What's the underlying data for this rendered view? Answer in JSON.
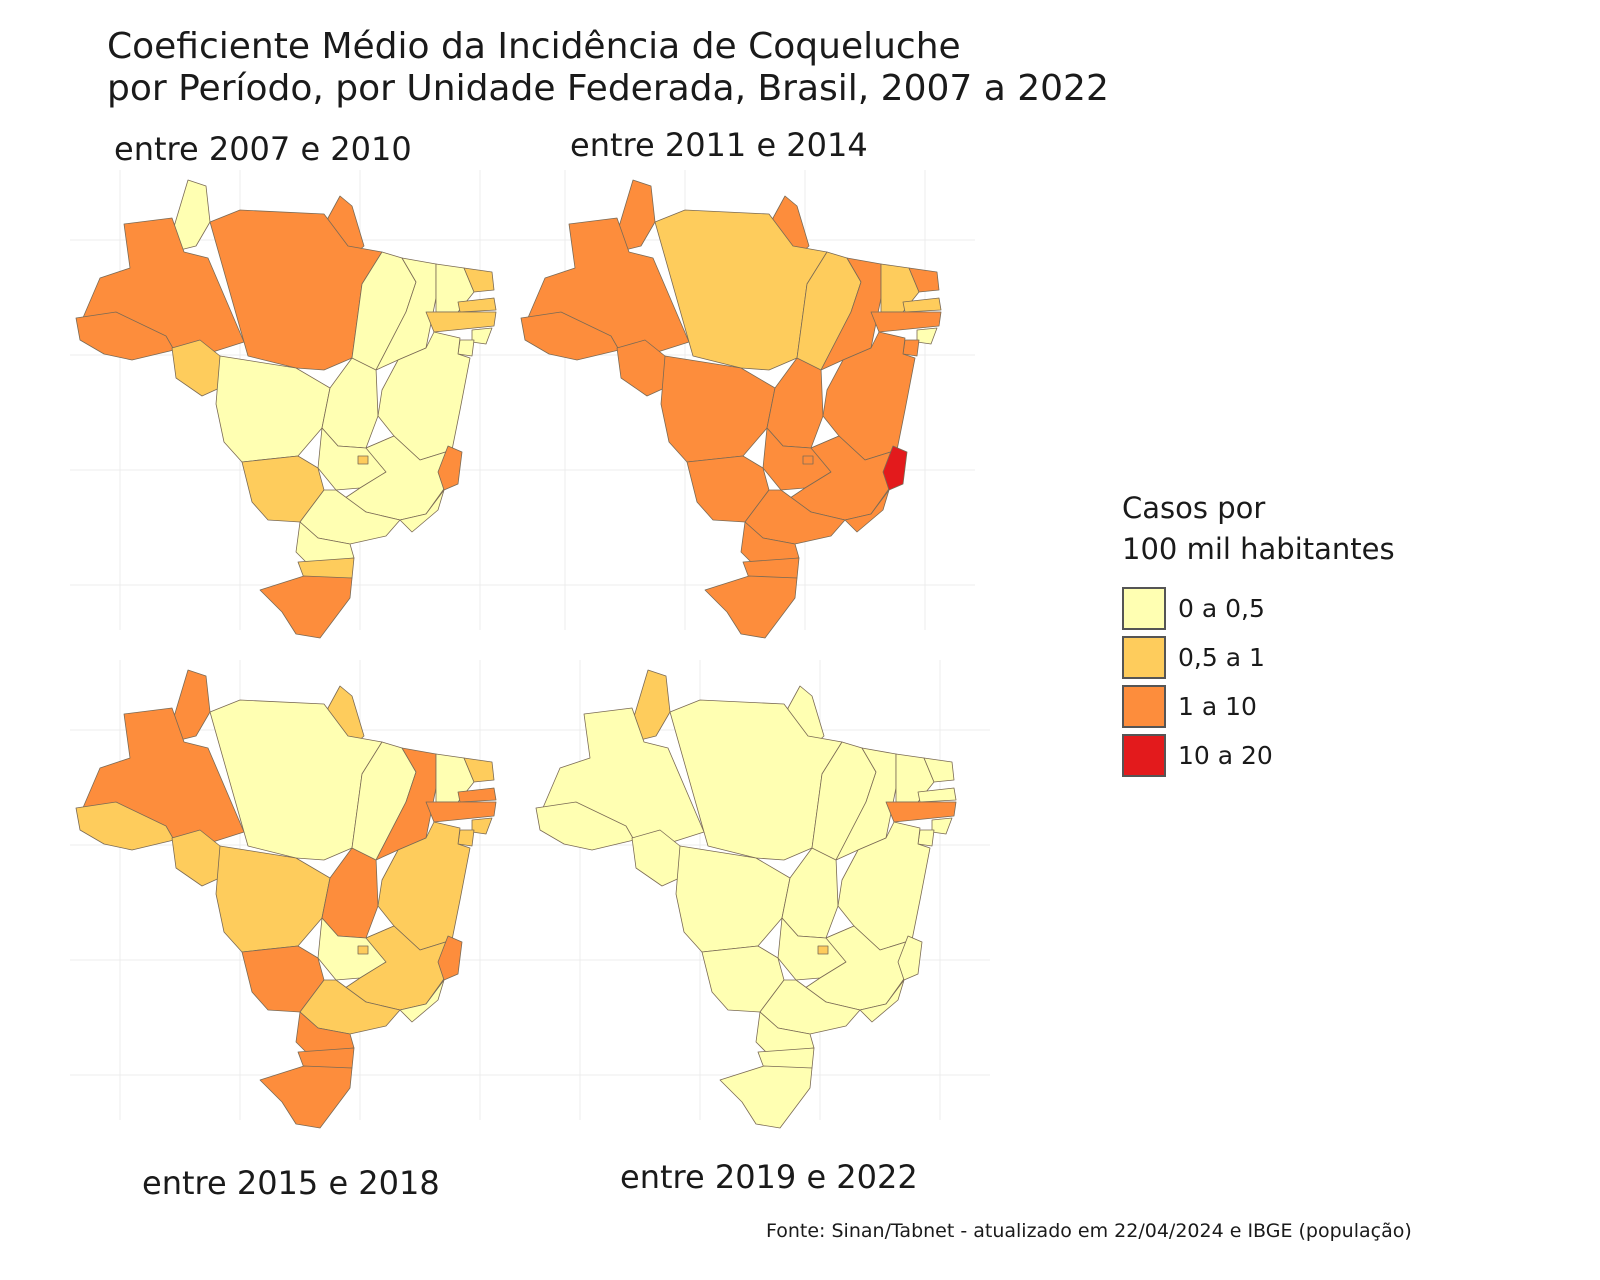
{
  "title_line1": "Coeficiente Médio da Incidência de Coqueluche",
  "title_line2": "por Período, por Unidade Federada,  Brasil, 2007 a 2022",
  "legend": {
    "title_line1": "Casos por",
    "title_line2": "100 mil habitantes",
    "items": [
      {
        "label": "0 a 0,5",
        "color": "#FFFFB2"
      },
      {
        "label": "0,5 a 1",
        "color": "#FECC5C"
      },
      {
        "label": "1 a 10",
        "color": "#FD8D3C"
      },
      {
        "label": "10 a 20",
        "color": "#E31A1C"
      }
    ]
  },
  "panels": [
    {
      "label": "entre 2007 e 2010",
      "states": {
        "AC": "1 a 10",
        "AM": "1 a 10",
        "RR": "0 a 0,5",
        "PA": "1 a 10",
        "AP": "1 a 10",
        "RO": "0,5 a 1",
        "MT": "0 a 0,5",
        "TO": "0 a 0,5",
        "MA": "0 a 0,5",
        "PI": "0 a 0,5",
        "CE": "0 a 0,5",
        "RN": "0,5 a 1",
        "PB": "0,5 a 1",
        "PE": "0,5 a 1",
        "AL": "0 a 0,5",
        "SE": "0 a 0,5",
        "BA": "0 a 0,5",
        "GO": "0 a 0,5",
        "DF": "0,5 a 1",
        "MS": "0,5 a 1",
        "MG": "0 a 0,5",
        "ES": "1 a 10",
        "RJ": "0 a 0,5",
        "SP": "0 a 0,5",
        "PR": "0 a 0,5",
        "SC": "0,5 a 1",
        "RS": "1 a 10"
      }
    },
    {
      "label": "entre 2011 e 2014",
      "states": {
        "AC": "1 a 10",
        "AM": "1 a 10",
        "RR": "1 a 10",
        "PA": "0,5 a 1",
        "AP": "1 a 10",
        "RO": "1 a 10",
        "MT": "1 a 10",
        "TO": "1 a 10",
        "MA": "0,5 a 1",
        "PI": "1 a 10",
        "CE": "0,5 a 1",
        "RN": "1 a 10",
        "PB": "0,5 a 1",
        "PE": "1 a 10",
        "AL": "0 a 0,5",
        "SE": "1 a 10",
        "BA": "1 a 10",
        "GO": "1 a 10",
        "DF": "1 a 10",
        "MS": "1 a 10",
        "MG": "1 a 10",
        "ES": "10 a 20",
        "RJ": "1 a 10",
        "SP": "1 a 10",
        "PR": "1 a 10",
        "SC": "1 a 10",
        "RS": "1 a 10"
      }
    },
    {
      "label": "entre 2015 e 2018",
      "states": {
        "AC": "0,5 a 1",
        "AM": "1 a 10",
        "RR": "1 a 10",
        "PA": "0 a 0,5",
        "AP": "0,5 a 1",
        "RO": "0,5 a 1",
        "MT": "0,5 a 1",
        "TO": "1 a 10",
        "MA": "0 a 0,5",
        "PI": "1 a 10",
        "CE": "0 a 0,5",
        "RN": "0,5 a 1",
        "PB": "1 a 10",
        "PE": "1 a 10",
        "AL": "0,5 a 1",
        "SE": "0,5 a 1",
        "BA": "0,5 a 1",
        "GO": "0 a 0,5",
        "DF": "0,5 a 1",
        "MS": "1 a 10",
        "MG": "0,5 a 1",
        "ES": "1 a 10",
        "RJ": "0 a 0,5",
        "SP": "0,5 a 1",
        "PR": "1 a 10",
        "SC": "1 a 10",
        "RS": "1 a 10"
      }
    },
    {
      "label": "entre 2019 e 2022",
      "states": {
        "AC": "0 a 0,5",
        "AM": "0 a 0,5",
        "RR": "0,5 a 1",
        "PA": "0 a 0,5",
        "AP": "0 a 0,5",
        "RO": "0 a 0,5",
        "MT": "0 a 0,5",
        "TO": "0 a 0,5",
        "MA": "0 a 0,5",
        "PI": "0 a 0,5",
        "CE": "0 a 0,5",
        "RN": "0 a 0,5",
        "PB": "0 a 0,5",
        "PE": "1 a 10",
        "AL": "0 a 0,5",
        "SE": "0 a 0,5",
        "BA": "0 a 0,5",
        "GO": "0 a 0,5",
        "DF": "0,5 a 1",
        "MS": "0 a 0,5",
        "MG": "0 a 0,5",
        "ES": "0 a 0,5",
        "RJ": "0 a 0,5",
        "SP": "0 a 0,5",
        "PR": "0 a 0,5",
        "SC": "0 a 0,5",
        "RS": "0 a 0,5"
      }
    }
  ],
  "source": "Fonte: Sinan/Tabnet - atualizado em 22/04/2024 e IBGE (população)"
}
